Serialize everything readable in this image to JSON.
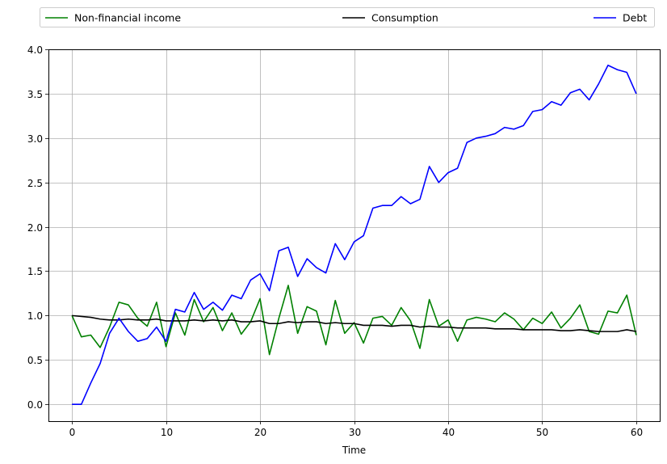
{
  "chart_data": {
    "type": "line",
    "title": "",
    "xlabel": "Time",
    "ylabel": "",
    "xlim": [
      -2.5,
      62.5
    ],
    "ylim": [
      -0.19,
      4.0
    ],
    "xticks": [
      0,
      10,
      20,
      30,
      40,
      50,
      60
    ],
    "yticks": [
      0.0,
      0.5,
      1.0,
      1.5,
      2.0,
      2.5,
      3.0,
      3.5,
      4.0
    ],
    "ytick_labels": [
      "0.0",
      "0.5",
      "1.0",
      "1.5",
      "2.0",
      "2.5",
      "3.0",
      "3.5",
      "4.0"
    ],
    "grid": true,
    "legend_position": "top-outside",
    "x": [
      0,
      1,
      2,
      3,
      4,
      5,
      6,
      7,
      8,
      9,
      10,
      11,
      12,
      13,
      14,
      15,
      16,
      17,
      18,
      19,
      20,
      21,
      22,
      23,
      24,
      25,
      26,
      27,
      28,
      29,
      30,
      31,
      32,
      33,
      34,
      35,
      36,
      37,
      38,
      39,
      40,
      41,
      42,
      43,
      44,
      45,
      46,
      47,
      48,
      49,
      50,
      51,
      52,
      53,
      54,
      55,
      56,
      57,
      58,
      59,
      60
    ],
    "series": [
      {
        "name": "Non-financial income",
        "color": "#008000",
        "values": [
          1.0,
          0.76,
          0.78,
          0.64,
          0.87,
          1.15,
          1.12,
          0.97,
          0.88,
          1.15,
          0.65,
          1.03,
          0.78,
          1.18,
          0.93,
          1.09,
          0.83,
          1.03,
          0.79,
          0.93,
          1.19,
          0.56,
          0.97,
          1.34,
          0.8,
          1.1,
          1.05,
          0.67,
          1.17,
          0.8,
          0.92,
          0.69,
          0.97,
          0.99,
          0.89,
          1.09,
          0.94,
          0.63,
          1.18,
          0.88,
          0.95,
          0.71,
          0.95,
          0.98,
          0.96,
          0.93,
          1.03,
          0.96,
          0.84,
          0.97,
          0.91,
          1.04,
          0.86,
          0.97,
          1.12,
          0.82,
          0.79,
          1.05,
          1.03,
          1.23,
          0.78
        ]
      },
      {
        "name": "Consumption",
        "color": "#000000",
        "values": [
          1.0,
          0.99,
          0.98,
          0.96,
          0.95,
          0.95,
          0.96,
          0.95,
          0.95,
          0.96,
          0.94,
          0.94,
          0.94,
          0.95,
          0.94,
          0.95,
          0.94,
          0.95,
          0.93,
          0.93,
          0.94,
          0.91,
          0.91,
          0.93,
          0.92,
          0.93,
          0.93,
          0.91,
          0.92,
          0.91,
          0.91,
          0.89,
          0.89,
          0.89,
          0.88,
          0.89,
          0.89,
          0.87,
          0.88,
          0.87,
          0.87,
          0.86,
          0.86,
          0.86,
          0.86,
          0.85,
          0.85,
          0.85,
          0.84,
          0.84,
          0.84,
          0.84,
          0.83,
          0.83,
          0.84,
          0.83,
          0.82,
          0.82,
          0.82,
          0.84,
          0.82
        ]
      },
      {
        "name": "Debt",
        "color": "#0000ff",
        "values": [
          0.0,
          0.0,
          0.24,
          0.46,
          0.8,
          0.97,
          0.82,
          0.71,
          0.74,
          0.87,
          0.71,
          1.07,
          1.04,
          1.26,
          1.07,
          1.15,
          1.06,
          1.23,
          1.19,
          1.4,
          1.47,
          1.28,
          1.73,
          1.77,
          1.44,
          1.64,
          1.54,
          1.48,
          1.81,
          1.63,
          1.83,
          1.9,
          2.21,
          2.24,
          2.24,
          2.34,
          2.26,
          2.31,
          2.68,
          2.5,
          2.61,
          2.66,
          2.95,
          3.0,
          3.02,
          3.05,
          3.12,
          3.1,
          3.14,
          3.3,
          3.32,
          3.41,
          3.37,
          3.51,
          3.55,
          3.43,
          3.61,
          3.82,
          3.77,
          3.74,
          3.5
        ]
      }
    ]
  }
}
